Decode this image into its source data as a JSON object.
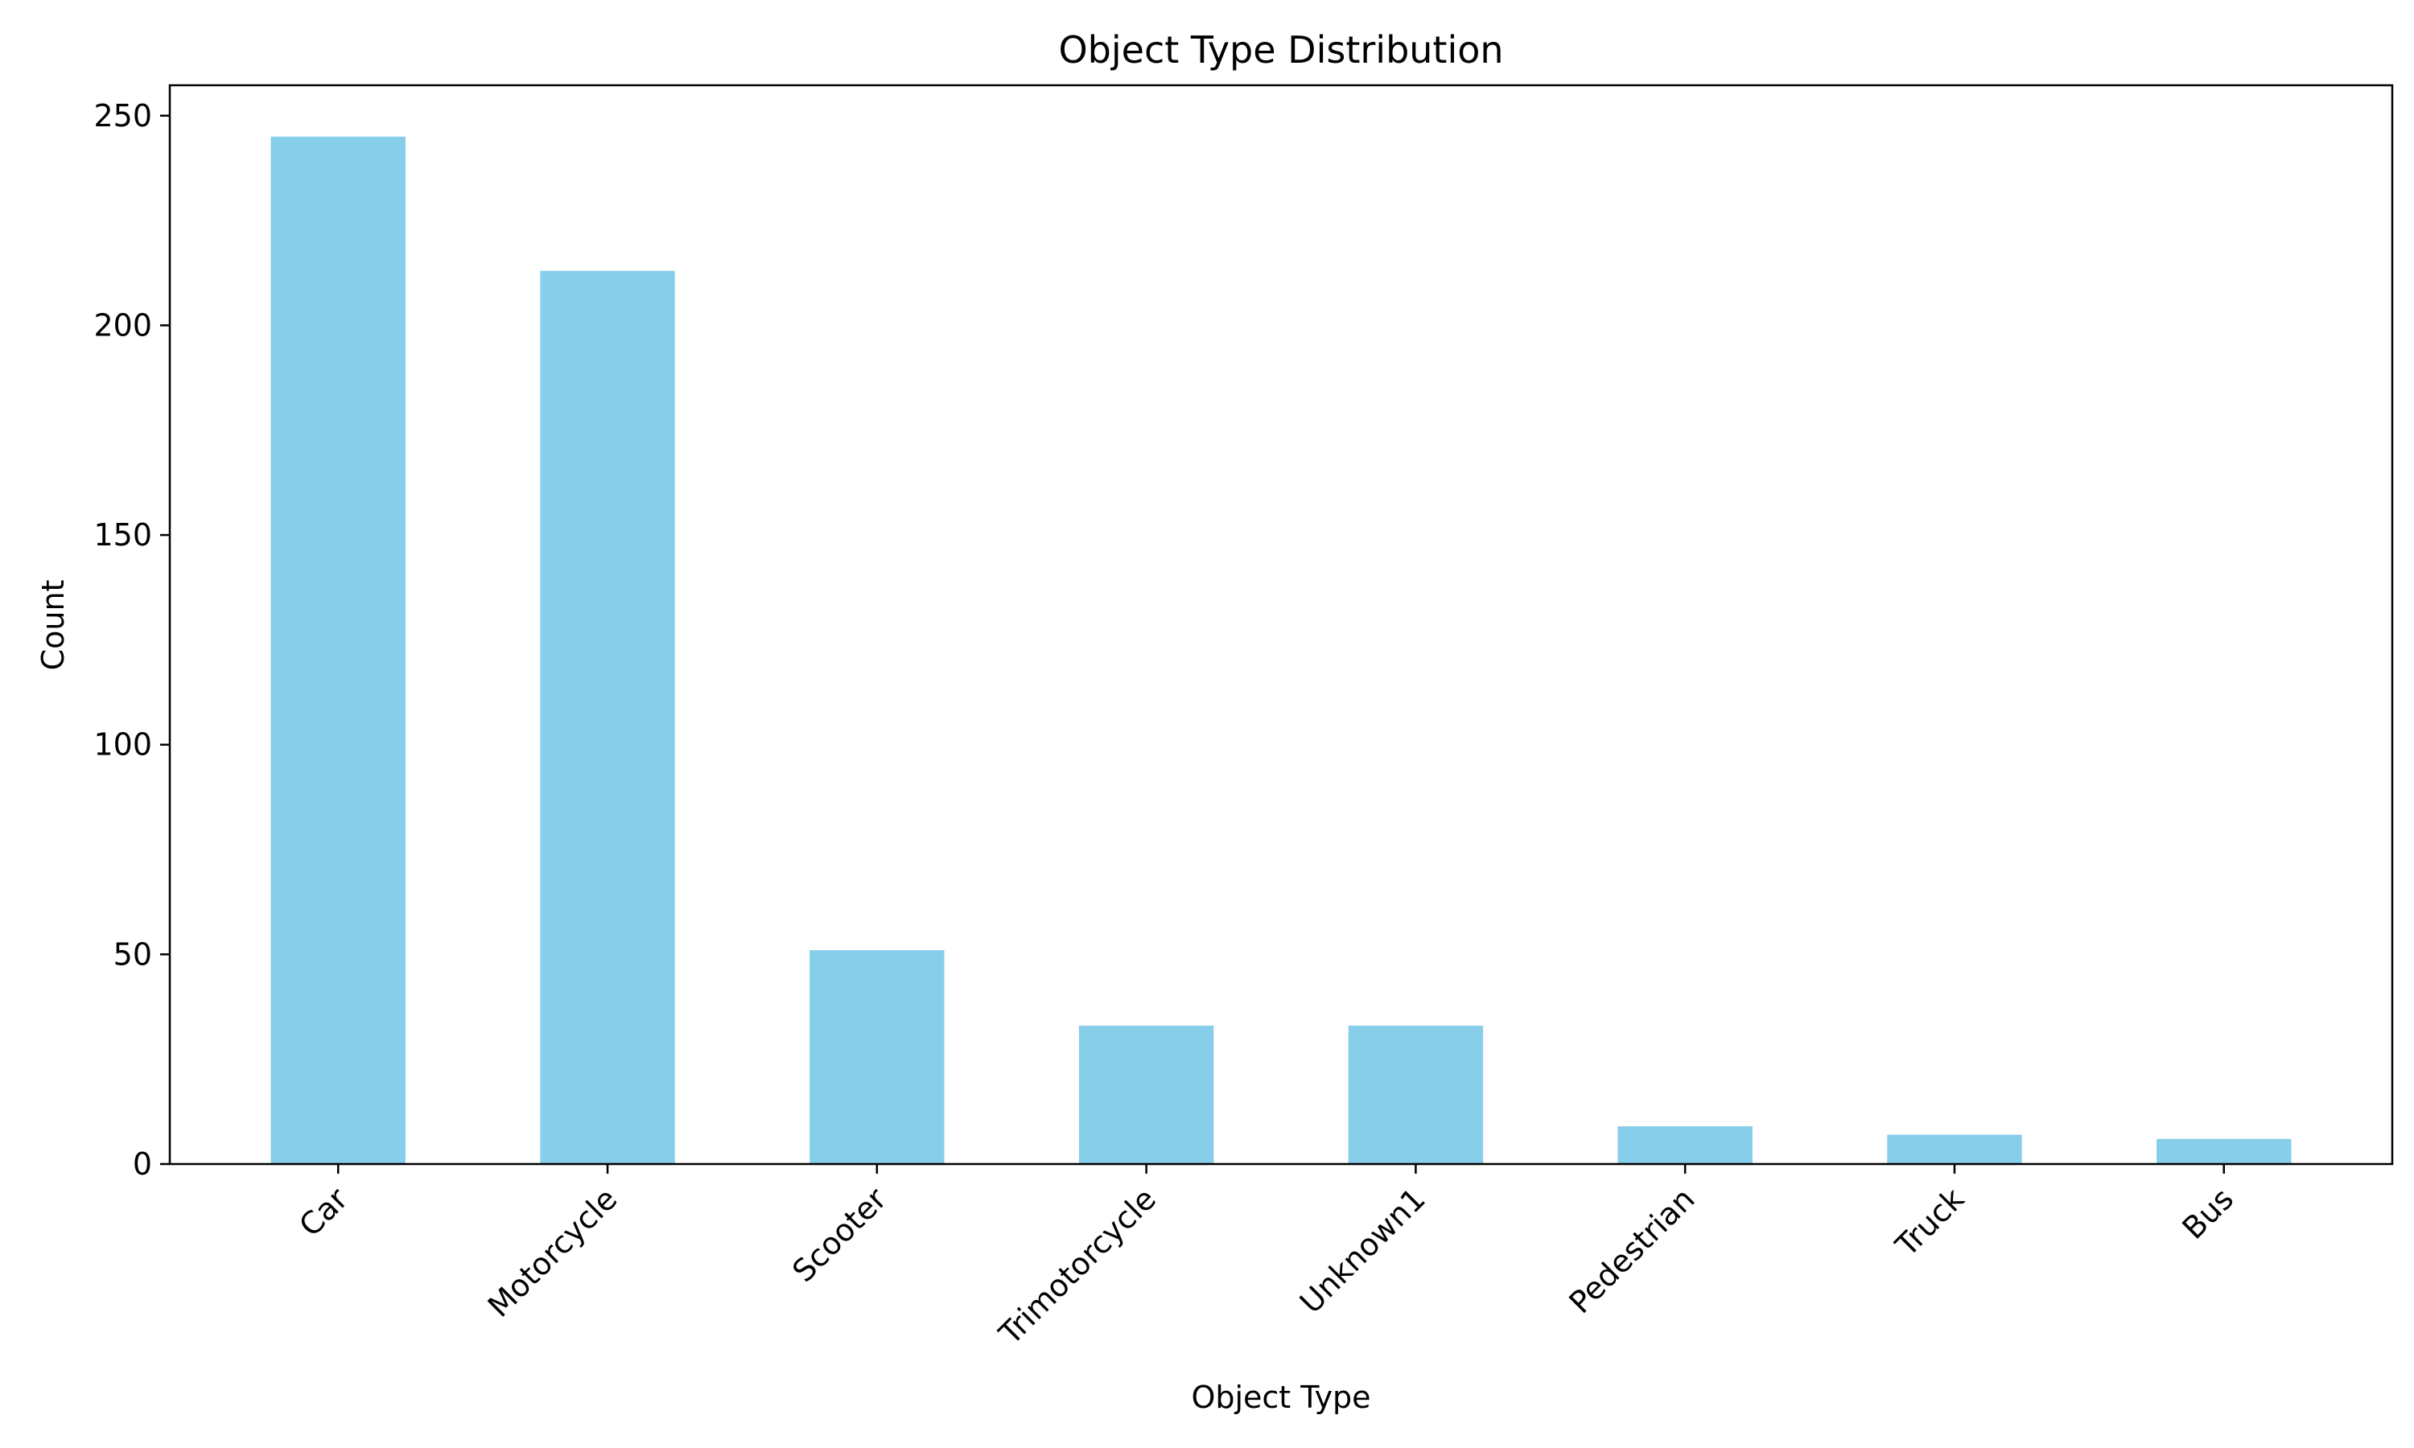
{
  "chart_data": {
    "type": "bar",
    "title": "Object Type Distribution",
    "xlabel": "Object Type",
    "ylabel": "Count",
    "categories": [
      "Car",
      "Motorcycle",
      "Scooter",
      "Trimotorcycle",
      "Unknown1",
      "Pedestrian",
      "Truck",
      "Bus"
    ],
    "values": [
      245,
      213,
      51,
      33,
      33,
      9,
      7,
      6
    ],
    "ylim": [
      0,
      257.25
    ],
    "yticks": [
      0,
      50,
      100,
      150,
      200,
      250
    ],
    "grid": false,
    "bar_color": "#87CEEB",
    "axis_color": "#000000"
  }
}
